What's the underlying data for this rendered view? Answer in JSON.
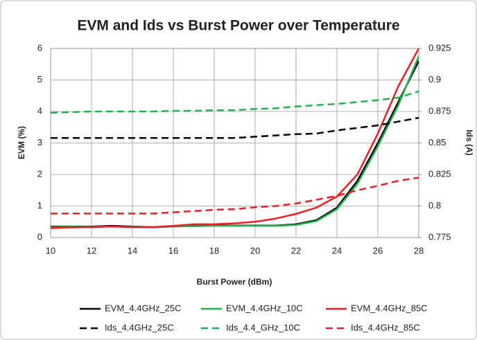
{
  "chart_data": {
    "type": "line",
    "title": "EVM and Ids vs Burst Power over Temperature",
    "xlabel": "Burst Power (dBm)",
    "ylabel": "EVM (%)",
    "y2label": "Ids (A)",
    "x": [
      10,
      11,
      12,
      13,
      14,
      15,
      16,
      17,
      18,
      19,
      20,
      21,
      22,
      23,
      24,
      25,
      26,
      27,
      28
    ],
    "xlim": [
      10,
      28
    ],
    "xticks": [
      10,
      12,
      14,
      16,
      18,
      20,
      22,
      24,
      26,
      28
    ],
    "ylim": [
      0,
      6
    ],
    "yticks": [
      0,
      1,
      2,
      3,
      4,
      5,
      6
    ],
    "y2lim": [
      0.775,
      0.925
    ],
    "y2ticks": [
      0.775,
      0.8,
      0.825,
      0.85,
      0.875,
      0.9,
      0.925
    ],
    "grid": true,
    "legend": "bottom",
    "series": [
      {
        "name": "EVM_4.4GHz_25C",
        "color": "#000000",
        "dashed": false,
        "values": [
          0.35,
          0.35,
          0.35,
          0.37,
          0.35,
          0.33,
          0.35,
          0.37,
          0.38,
          0.38,
          0.38,
          0.38,
          0.42,
          0.55,
          0.95,
          1.8,
          3.0,
          4.3,
          5.6
        ]
      },
      {
        "name": "EVM_4.4GHz_10C",
        "color": "#22b14c",
        "dashed": false,
        "values": [
          0.33,
          0.34,
          0.34,
          0.35,
          0.34,
          0.33,
          0.35,
          0.36,
          0.37,
          0.37,
          0.37,
          0.37,
          0.4,
          0.52,
          0.9,
          1.7,
          2.9,
          4.2,
          5.75
        ]
      },
      {
        "name": "EVM_4.4GHz_85C",
        "color": "#ee1c25",
        "dashed": false,
        "values": [
          0.3,
          0.32,
          0.33,
          0.35,
          0.33,
          0.33,
          0.37,
          0.42,
          0.42,
          0.45,
          0.5,
          0.6,
          0.75,
          0.95,
          1.3,
          2.0,
          3.3,
          4.8,
          6.0
        ]
      },
      {
        "name": "Ids_4.4GHz_25C",
        "color": "#000000",
        "dashed": true,
        "axis": "y2",
        "values": [
          0.854,
          0.854,
          0.854,
          0.854,
          0.854,
          0.854,
          0.854,
          0.854,
          0.854,
          0.854,
          0.855,
          0.856,
          0.857,
          0.8575,
          0.86,
          0.862,
          0.864,
          0.867,
          0.87
        ]
      },
      {
        "name": "Ids_4.4_GHz_10C",
        "color": "#22b14c",
        "dashed": true,
        "axis": "y2",
        "values": [
          0.874,
          0.8745,
          0.875,
          0.875,
          0.875,
          0.875,
          0.8755,
          0.8755,
          0.876,
          0.876,
          0.877,
          0.8775,
          0.879,
          0.88,
          0.881,
          0.8825,
          0.884,
          0.886,
          0.891
        ]
      },
      {
        "name": "Ids_4.4GHz_85C",
        "color": "#ee1c25",
        "dashed": true,
        "axis": "y2",
        "values": [
          0.794,
          0.794,
          0.794,
          0.794,
          0.794,
          0.794,
          0.795,
          0.796,
          0.797,
          0.7975,
          0.799,
          0.8,
          0.802,
          0.805,
          0.808,
          0.8125,
          0.816,
          0.82,
          0.8225
        ]
      }
    ]
  }
}
